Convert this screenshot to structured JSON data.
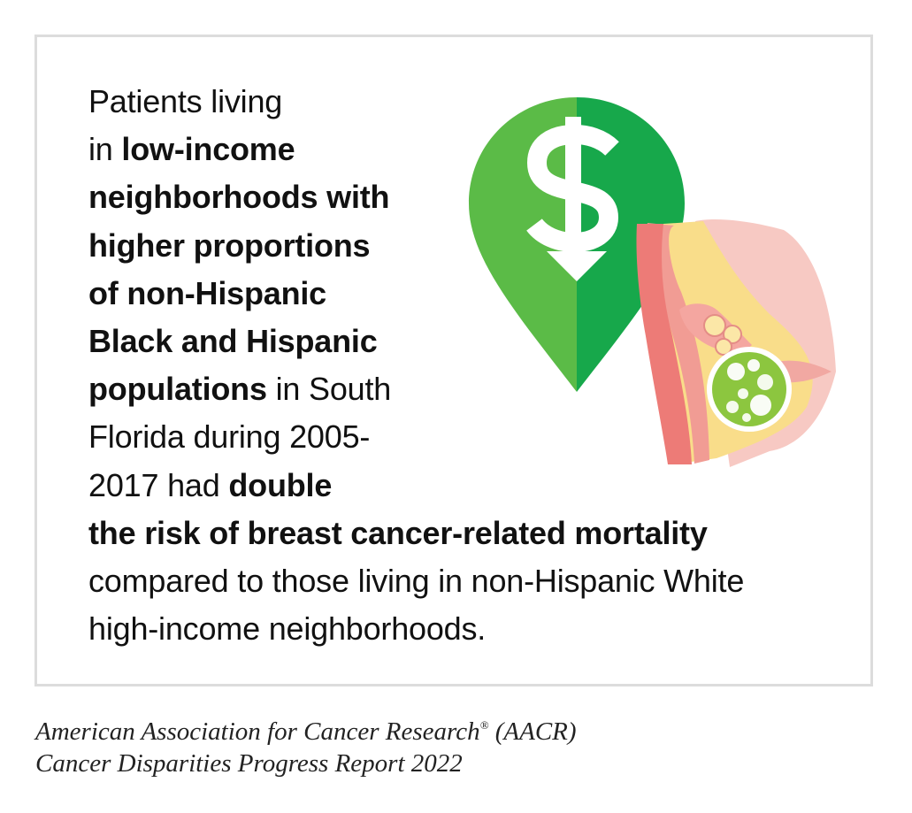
{
  "lines": [
    [
      {
        "t": "Patients living",
        "b": false
      }
    ],
    [
      {
        "t": "in ",
        "b": false
      },
      {
        "t": "low-income",
        "b": true
      }
    ],
    [
      {
        "t": "neighborhoods with",
        "b": true
      }
    ],
    [
      {
        "t": "higher proportions",
        "b": true
      }
    ],
    [
      {
        "t": "of non-Hispanic",
        "b": true
      }
    ],
    [
      {
        "t": "Black and Hispanic",
        "b": true
      }
    ],
    [
      {
        "t": "populations",
        "b": true
      },
      {
        "t": " in South",
        "b": false
      }
    ],
    [
      {
        "t": "Florida during 2005-",
        "b": false
      }
    ],
    [
      {
        "t": "2017 had ",
        "b": false
      },
      {
        "t": "double",
        "b": true
      }
    ],
    [
      {
        "t": "the risk of breast cancer-related mortality",
        "b": true
      }
    ],
    [
      {
        "t": "compared to those living in non-Hispanic White",
        "b": false
      }
    ],
    [
      {
        "t": "high-income neighborhoods.",
        "b": false
      }
    ]
  ],
  "caption": {
    "line1_pre": "American Association for Cancer Research",
    "reg": "®",
    "line1_post": " (AACR)",
    "line2": "Cancer Disparities Progress Report 2022"
  },
  "icons": {
    "pin": "location-pin-dollar-down-icon",
    "breast": "breast-tumor-illustration-icon"
  },
  "colors": {
    "pin_light": "#5bbb47",
    "pin_dark": "#17a84b",
    "tumor": "#8cc63f",
    "border": "#dcdcdc"
  }
}
